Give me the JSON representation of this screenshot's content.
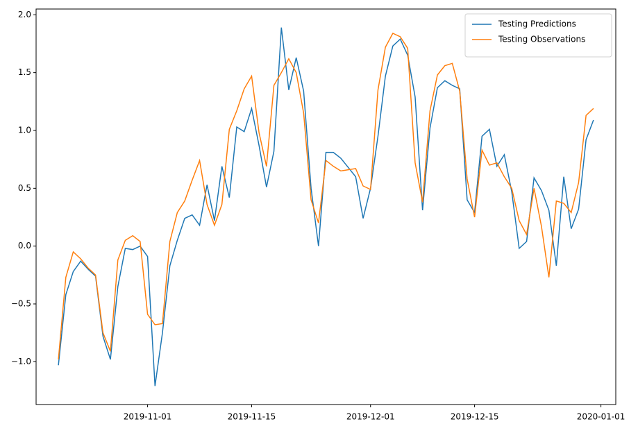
{
  "chart_data": {
    "type": "line",
    "x": [
      "2019-10-20",
      "2019-10-21",
      "2019-10-22",
      "2019-10-23",
      "2019-10-24",
      "2019-10-25",
      "2019-10-26",
      "2019-10-27",
      "2019-10-28",
      "2019-10-29",
      "2019-10-30",
      "2019-10-31",
      "2019-11-01",
      "2019-11-02",
      "2019-11-03",
      "2019-11-04",
      "2019-11-05",
      "2019-11-06",
      "2019-11-07",
      "2019-11-08",
      "2019-11-09",
      "2019-11-10",
      "2019-11-11",
      "2019-11-12",
      "2019-11-13",
      "2019-11-14",
      "2019-11-15",
      "2019-11-16",
      "2019-11-17",
      "2019-11-18",
      "2019-11-19",
      "2019-11-20",
      "2019-11-21",
      "2019-11-22",
      "2019-11-23",
      "2019-11-24",
      "2019-11-25",
      "2019-11-26",
      "2019-11-27",
      "2019-11-28",
      "2019-11-29",
      "2019-11-30",
      "2019-12-01",
      "2019-12-02",
      "2019-12-03",
      "2019-12-04",
      "2019-12-05",
      "2019-12-06",
      "2019-12-07",
      "2019-12-08",
      "2019-12-09",
      "2019-12-10",
      "2019-12-11",
      "2019-12-12",
      "2019-12-13",
      "2019-12-14",
      "2019-12-15",
      "2019-12-16",
      "2019-12-17",
      "2019-12-18",
      "2019-12-19",
      "2019-12-20",
      "2019-12-21",
      "2019-12-22",
      "2019-12-23",
      "2019-12-24",
      "2019-12-25",
      "2019-12-26",
      "2019-12-27",
      "2019-12-28",
      "2019-12-29",
      "2019-12-30",
      "2019-12-31"
    ],
    "series": [
      {
        "name": "Testing Predictions",
        "color": "#1f77b4",
        "values": [
          -1.03,
          -0.42,
          -0.22,
          -0.13,
          -0.2,
          -0.26,
          -0.78,
          -0.98,
          -0.35,
          -0.02,
          -0.03,
          0.0,
          -0.09,
          -1.21,
          -0.75,
          -0.17,
          0.05,
          0.24,
          0.27,
          0.18,
          0.53,
          0.22,
          0.69,
          0.42,
          1.03,
          0.99,
          1.19,
          0.87,
          0.51,
          0.82,
          1.89,
          1.35,
          1.63,
          1.34,
          0.5,
          0.0,
          0.81,
          0.81,
          0.76,
          0.68,
          0.6,
          0.24,
          0.5,
          0.95,
          1.47,
          1.73,
          1.79,
          1.65,
          1.29,
          0.31,
          1.02,
          1.37,
          1.43,
          1.39,
          1.36,
          0.4,
          0.29,
          0.95,
          1.01,
          0.69,
          0.79,
          0.47,
          -0.02,
          0.04,
          0.59,
          0.48,
          0.31,
          -0.17,
          0.6,
          0.15,
          0.32,
          0.92,
          1.09
        ]
      },
      {
        "name": "Testing Observations",
        "color": "#ff7f0e",
        "values": [
          -0.98,
          -0.27,
          -0.05,
          -0.11,
          -0.19,
          -0.25,
          -0.75,
          -0.91,
          -0.12,
          0.05,
          0.09,
          0.04,
          -0.59,
          -0.68,
          -0.67,
          0.04,
          0.29,
          0.39,
          0.57,
          0.74,
          0.36,
          0.18,
          0.36,
          1.01,
          1.17,
          1.36,
          1.47,
          0.98,
          0.69,
          1.39,
          1.5,
          1.62,
          1.5,
          1.15,
          0.4,
          0.2,
          0.74,
          0.69,
          0.65,
          0.66,
          0.67,
          0.52,
          0.49,
          1.35,
          1.72,
          1.84,
          1.81,
          1.71,
          0.72,
          0.38,
          1.17,
          1.48,
          1.56,
          1.58,
          1.34,
          0.58,
          0.25,
          0.83,
          0.7,
          0.72,
          0.6,
          0.5,
          0.22,
          0.1,
          0.5,
          0.17,
          -0.27,
          0.39,
          0.37,
          0.29,
          0.55,
          1.13,
          1.19
        ]
      }
    ],
    "xlim": [
      "2019-10-17",
      "2020-01-03"
    ],
    "xticks": [
      "2019-11-01",
      "2019-11-15",
      "2019-12-01",
      "2019-12-15",
      "2020-01-01"
    ],
    "ylim": [
      -1.37,
      2.05
    ],
    "yticks": [
      {
        "value": -1.0,
        "label": "−1.0"
      },
      {
        "value": -0.5,
        "label": "−0.5"
      },
      {
        "value": 0.0,
        "label": "0.0"
      },
      {
        "value": 0.5,
        "label": "0.5"
      },
      {
        "value": 1.0,
        "label": "1.0"
      },
      {
        "value": 1.5,
        "label": "1.5"
      },
      {
        "value": 2.0,
        "label": "2.0"
      }
    ],
    "legend": "upper right"
  }
}
